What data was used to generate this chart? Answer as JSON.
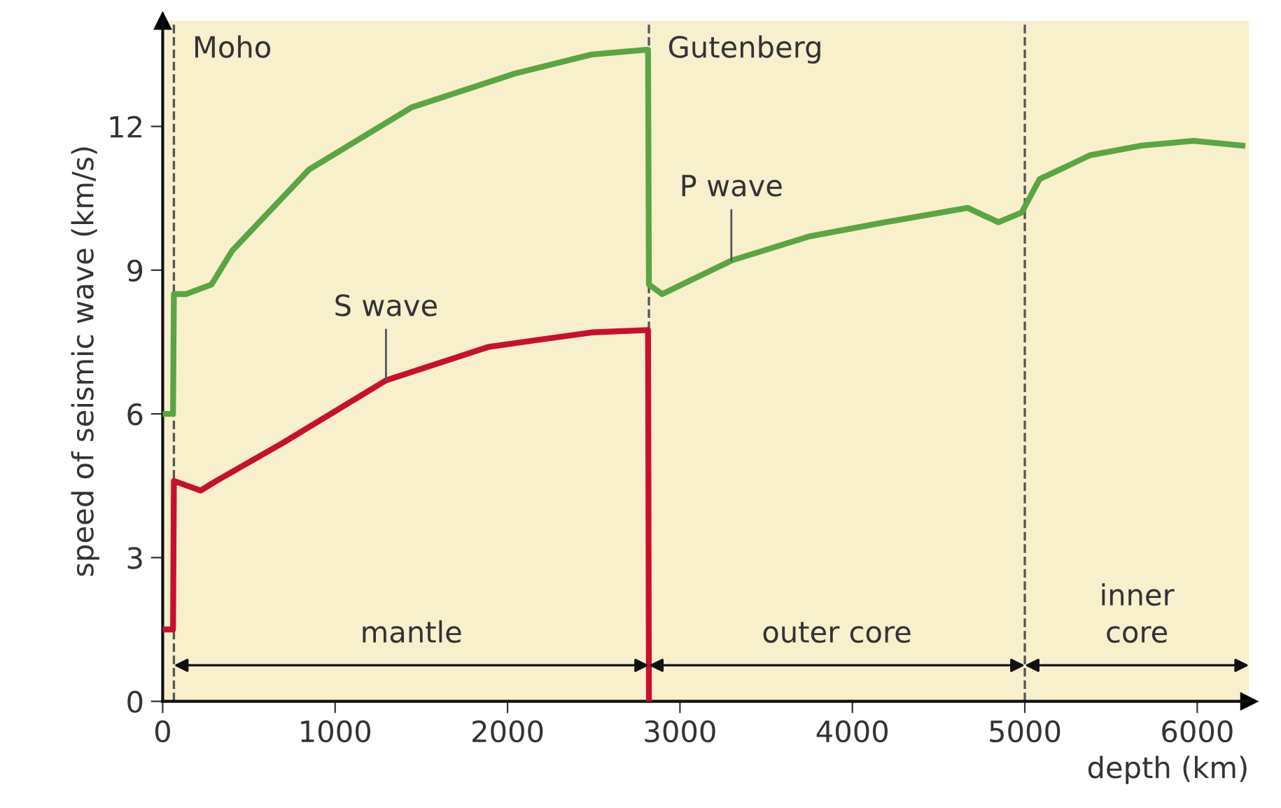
{
  "chart_data": {
    "type": "line",
    "xlabel": "depth (km)",
    "ylabel": "speed of seismic wave (km/s)",
    "series": [
      {
        "name": "P wave",
        "color": "#5aa544",
        "x": [
          0,
          60,
          65,
          134,
          283,
          402,
          849,
          1445,
          2040,
          2487,
          2800,
          2815,
          2820,
          2897,
          3298,
          3745,
          4190,
          4668,
          4847,
          4981,
          5086,
          5380,
          5680,
          5979,
          6262
        ],
        "values": [
          6.0,
          6.0,
          8.5,
          8.5,
          8.7,
          9.4,
          11.1,
          12.4,
          13.1,
          13.5,
          13.6,
          13.6,
          8.7,
          8.5,
          9.2,
          9.7,
          10.0,
          10.3,
          10.0,
          10.2,
          10.9,
          11.4,
          11.6,
          11.7,
          11.6
        ]
      },
      {
        "name": "S wave",
        "color": "#c8102e",
        "x": [
          0,
          60,
          65,
          220,
          311,
          700,
          1295,
          1892,
          2487,
          2815,
          2820
        ],
        "values": [
          1.5,
          1.5,
          4.6,
          4.4,
          4.6,
          5.4,
          6.7,
          7.4,
          7.7,
          7.75,
          0
        ]
      }
    ],
    "annotations": [
      "mantle",
      "outer core",
      "inner\ncore"
    ],
    "ref_lines": [
      {
        "axis": "x",
        "value": 65,
        "label": "Moho",
        "line_style": "dashed"
      },
      {
        "axis": "x",
        "value": 2820,
        "label": "Gutenberg",
        "line_style": "dashed"
      },
      {
        "axis": "x",
        "value": 5000,
        "label": null,
        "line_style": "dashed"
      }
    ],
    "xlim": [
      0,
      6300
    ],
    "ylim": [
      0,
      14.2
    ],
    "xticks": [
      0,
      1000,
      2000,
      3000,
      4000,
      5000,
      6000
    ],
    "yticks": [
      0,
      3,
      6,
      9,
      12
    ],
    "grid": false,
    "legend": false,
    "line_style": "solid",
    "marker": "none"
  }
}
